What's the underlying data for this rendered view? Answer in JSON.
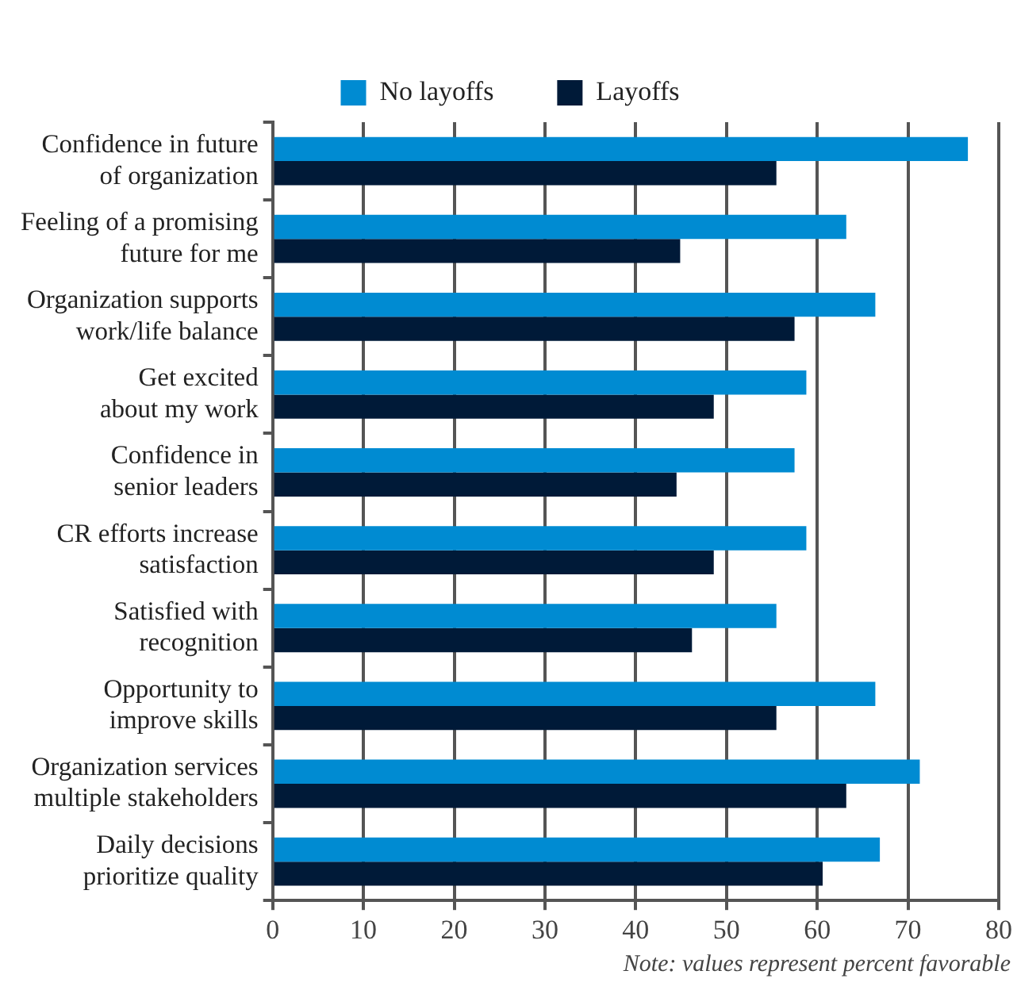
{
  "chart_data": {
    "type": "bar",
    "orientation": "horizontal",
    "categories": [
      "Confidence in future of organization",
      "Feeling of a promising future for me",
      "Organization supports work/life balance",
      "Get excited about my work",
      "Confidence in senior leaders",
      "CR efforts increase satisfaction",
      "Satisfied with recognition",
      "Opportunity to improve skills",
      "Organization services multiple stakeholders",
      "Daily decisions prioritize quality"
    ],
    "series": [
      {
        "name": "No layoffs",
        "color": "#008bd2",
        "values": [
          76.6,
          63.2,
          66.4,
          58.8,
          57.5,
          58.8,
          55.5,
          66.4,
          71.3,
          66.9
        ]
      },
      {
        "name": "Layoffs",
        "color": "#001a38",
        "values": [
          55.5,
          44.9,
          57.5,
          48.6,
          44.5,
          48.6,
          46.2,
          55.5,
          63.2,
          60.6
        ]
      }
    ],
    "xlim": [
      0,
      80
    ],
    "xticks": [
      0,
      10,
      20,
      30,
      40,
      50,
      60,
      70,
      80
    ],
    "grid": "x",
    "legend": "top",
    "annotations": [
      "Note: values represent percent favorable"
    ]
  }
}
